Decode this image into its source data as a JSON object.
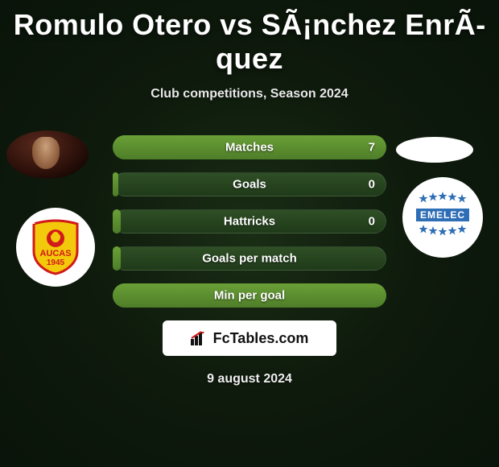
{
  "title": "Romulo Otero vs SÃ¡nchez EnrÃ­quez",
  "subtitle": "Club competitions, Season 2024",
  "date": "9 august 2024",
  "branding": {
    "label": "FcTables.com"
  },
  "colors": {
    "bar_track_top": "#2f4f26",
    "bar_track_bottom": "#1f3a19",
    "bar_fill_top": "#6aa037",
    "bar_fill_bottom": "#4e7d28",
    "text": "#ffffff",
    "badge_bg": "#ffffff"
  },
  "stats": [
    {
      "label": "Matches",
      "value": "7",
      "fill_pct": 100
    },
    {
      "label": "Goals",
      "value": "0",
      "fill_pct": 2
    },
    {
      "label": "Hattricks",
      "value": "0",
      "fill_pct": 3
    },
    {
      "label": "Goals per match",
      "value": "",
      "fill_pct": 3
    },
    {
      "label": "Min per goal",
      "value": "",
      "fill_pct": 100
    }
  ],
  "left_club": {
    "name": "Aucas",
    "year": "1945",
    "primary": "#f3c90b",
    "secondary": "#d11a1a"
  },
  "right_club": {
    "name": "EMELEC",
    "primary": "#2e6eb6",
    "stars": 10
  }
}
